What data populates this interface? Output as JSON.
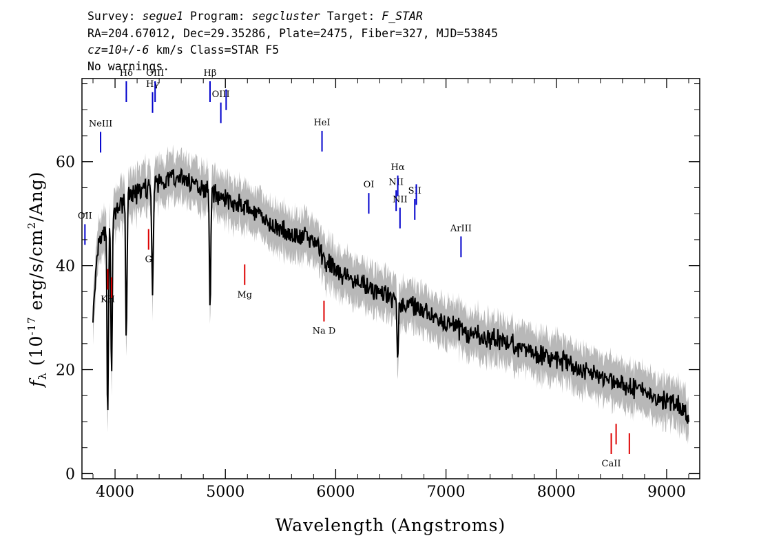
{
  "header": {
    "survey_label": "Survey:",
    "survey": "segue1",
    "program_label": "Program:",
    "program": "segcluster",
    "target_label": "Target:",
    "target": "F_STAR",
    "line2": "RA=204.67012, Dec=29.35286, Plate=2475, Fiber=327, MJD=53845",
    "cz_value": "cz=10+/-6",
    "cz_rest": " km/s Class=STAR F5",
    "line4": "No warnings."
  },
  "chart_data": {
    "type": "line",
    "xlabel": "Wavelength (Angstroms)",
    "ylabel": "f_λ (10^-17 erg/s/cm^2/Ang)",
    "xlim": [
      3700,
      9300
    ],
    "ylim": [
      -1,
      76
    ],
    "x_ticks": [
      4000,
      5000,
      6000,
      7000,
      8000,
      9000
    ],
    "y_ticks": [
      0,
      20,
      40,
      60
    ],
    "grid": false,
    "colors": {
      "flux": "#000000",
      "error_band": "#b8b8b8",
      "emission": "#0000cc",
      "absorption": "#dd0000"
    },
    "series": [
      {
        "role": "flux",
        "x": [
          3800,
          3850,
          3900,
          4000,
          4100,
          4200,
          4300,
          4400,
          4500,
          4600,
          4700,
          4800,
          4900,
          5000,
          5200,
          5400,
          5600,
          5800,
          5900,
          6000,
          6200,
          6400,
          6600,
          6800,
          7000,
          7200,
          7400,
          7600,
          7800,
          8000,
          8200,
          8400,
          8600,
          8800,
          9000,
          9100,
          9200
        ],
        "y": [
          30,
          44,
          46,
          50,
          53,
          54,
          55,
          56,
          57,
          57,
          56,
          55,
          54,
          53,
          51,
          48,
          46,
          45,
          41,
          39,
          37,
          35,
          33,
          31,
          29,
          27,
          26,
          25,
          23,
          22,
          20,
          19,
          17,
          16,
          14,
          13,
          11
        ]
      },
      {
        "role": "absorption_dips",
        "x": [
          3934,
          3969,
          4102,
          4340,
          4861,
          6563
        ],
        "y": [
          11,
          20,
          27,
          34,
          32,
          22
        ]
      }
    ],
    "lines": [
      {
        "label": "OII",
        "wavelength": 3727,
        "type": "emission",
        "label_pos": "top"
      },
      {
        "label": "NeIII",
        "wavelength": 3869,
        "type": "emission",
        "label_pos": "top"
      },
      {
        "label": "Hδ",
        "wavelength": 4102,
        "type": "emission",
        "label_pos": "top"
      },
      {
        "label": "Hγ",
        "wavelength": 4340,
        "type": "emission",
        "label_pos": "top"
      },
      {
        "label": "OIII",
        "wavelength": 4363,
        "type": "emission",
        "label_pos": "top"
      },
      {
        "label": "Hβ",
        "wavelength": 4861,
        "type": "emission",
        "label_pos": "top"
      },
      {
        "label": "OIII",
        "wavelength": 4959,
        "type": "emission",
        "label_pos": "top"
      },
      {
        "label": "",
        "wavelength": 5007,
        "type": "emission",
        "label_pos": "top"
      },
      {
        "label": "HeI",
        "wavelength": 5876,
        "type": "emission",
        "label_pos": "top"
      },
      {
        "label": "OI",
        "wavelength": 6300,
        "type": "emission",
        "label_pos": "top"
      },
      {
        "label": "NII",
        "wavelength": 6548,
        "type": "emission",
        "label_pos": "top"
      },
      {
        "label": "Hα",
        "wavelength": 6563,
        "type": "emission",
        "label_pos": "top"
      },
      {
        "label": "NII",
        "wavelength": 6583,
        "type": "emission",
        "label_pos": "top"
      },
      {
        "label": "SII",
        "wavelength": 6717,
        "type": "emission",
        "label_pos": "top"
      },
      {
        "label": "",
        "wavelength": 6731,
        "type": "emission",
        "label_pos": "top"
      },
      {
        "label": "ArIII",
        "wavelength": 7136,
        "type": "emission",
        "label_pos": "top"
      },
      {
        "label": "KH",
        "wavelength": 3934,
        "type": "absorption",
        "label_pos": "bottom"
      },
      {
        "label": "",
        "wavelength": 3969,
        "type": "absorption",
        "label_pos": "bottom"
      },
      {
        "label": "G",
        "wavelength": 4304,
        "type": "absorption",
        "label_pos": "bottom"
      },
      {
        "label": "Mg",
        "wavelength": 5175,
        "type": "absorption",
        "label_pos": "bottom"
      },
      {
        "label": "Na D",
        "wavelength": 5894,
        "type": "absorption",
        "label_pos": "bottom"
      },
      {
        "label": "CaII",
        "wavelength": 8498,
        "type": "absorption",
        "label_pos": "bottom"
      },
      {
        "label": "",
        "wavelength": 8542,
        "type": "absorption",
        "label_pos": "bottom"
      },
      {
        "label": "",
        "wavelength": 8662,
        "type": "absorption",
        "label_pos": "bottom"
      }
    ]
  }
}
